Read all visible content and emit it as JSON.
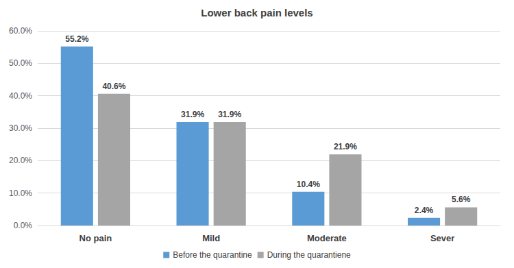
{
  "chart_data": {
    "type": "bar",
    "title": "Lower back pain levels",
    "categories": [
      "No pain",
      "Mild",
      "Moderate",
      "Sever"
    ],
    "series": [
      {
        "name": "Before the quarantine",
        "color": "#5b9bd5",
        "values": [
          55.2,
          31.9,
          10.4,
          2.4
        ],
        "value_labels": [
          "55.2%",
          "31.9%",
          "10.4%",
          "2.4%"
        ]
      },
      {
        "name": "During the quarantiene",
        "color": "#a5a5a5",
        "values": [
          40.6,
          31.9,
          21.9,
          5.6
        ],
        "value_labels": [
          "40.6%",
          "31.9%",
          "21.9%",
          "5.6%"
        ]
      }
    ],
    "ylim": [
      0,
      60
    ],
    "yticks": [
      {
        "value": 0,
        "label": "0.0%"
      },
      {
        "value": 10,
        "label": "10.0%"
      },
      {
        "value": 20,
        "label": "20.0%"
      },
      {
        "value": 30,
        "label": "30.0%"
      },
      {
        "value": 40,
        "label": "40.0%"
      },
      {
        "value": 50,
        "label": "50.0%"
      },
      {
        "value": 60,
        "label": "60.0%"
      }
    ],
    "grid": true,
    "legend": "bottom",
    "data_labels": true
  }
}
